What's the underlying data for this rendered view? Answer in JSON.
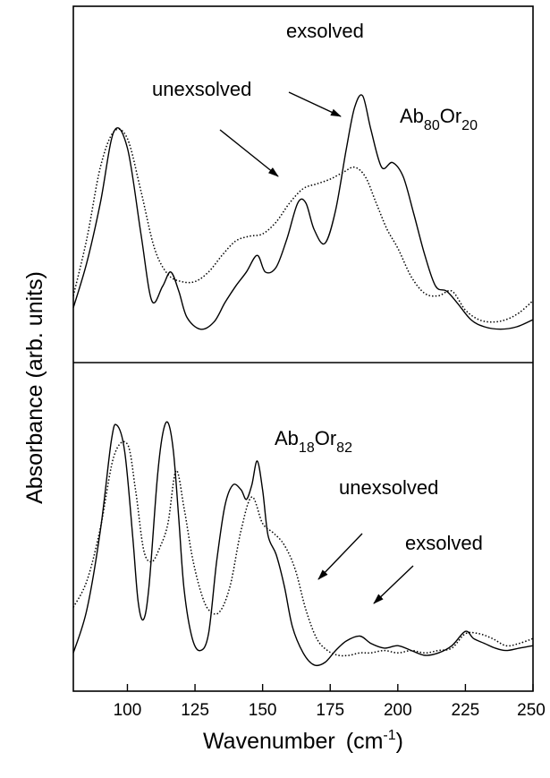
{
  "chart_data": [
    {
      "type": "line",
      "panel": "top",
      "label_main": "Ab",
      "label_sub1": "80",
      "label_mid": "Or",
      "label_sub2": "20",
      "xlim": [
        80,
        250
      ],
      "series": [
        {
          "name": "exsolved",
          "style": "solid",
          "x": [
            80,
            85,
            90,
            95,
            100,
            105,
            109,
            113,
            116,
            119,
            122,
            127,
            132,
            136,
            140,
            144,
            148,
            151,
            155,
            159,
            163,
            166,
            169,
            173,
            177,
            181,
            184,
            187,
            190,
            194,
            198,
            202,
            206,
            210,
            214,
            218,
            222,
            227,
            232,
            238,
            244,
            250
          ],
          "y": [
            0.11,
            0.3,
            0.55,
            0.85,
            0.78,
            0.42,
            0.14,
            0.2,
            0.26,
            0.18,
            0.07,
            0.02,
            0.05,
            0.13,
            0.2,
            0.26,
            0.33,
            0.26,
            0.28,
            0.4,
            0.55,
            0.55,
            0.44,
            0.38,
            0.52,
            0.78,
            0.95,
            1.0,
            0.86,
            0.7,
            0.72,
            0.66,
            0.5,
            0.33,
            0.2,
            0.18,
            0.13,
            0.06,
            0.03,
            0.02,
            0.03,
            0.06
          ]
        },
        {
          "name": "unexsolved",
          "style": "dotted",
          "x": [
            80,
            85,
            90,
            95,
            100,
            105,
            110,
            115,
            120,
            125,
            130,
            135,
            140,
            145,
            150,
            155,
            160,
            165,
            170,
            175,
            180,
            184,
            188,
            192,
            196,
            200,
            205,
            210,
            215,
            220,
            225,
            230,
            235,
            240,
            245,
            250
          ],
          "y": [
            0.16,
            0.4,
            0.7,
            0.85,
            0.82,
            0.6,
            0.36,
            0.25,
            0.22,
            0.22,
            0.26,
            0.33,
            0.39,
            0.41,
            0.42,
            0.47,
            0.55,
            0.61,
            0.63,
            0.65,
            0.68,
            0.7,
            0.66,
            0.55,
            0.44,
            0.36,
            0.24,
            0.17,
            0.16,
            0.18,
            0.1,
            0.06,
            0.05,
            0.06,
            0.09,
            0.14
          ]
        }
      ]
    },
    {
      "type": "line",
      "panel": "bottom",
      "label_main": "Ab",
      "label_sub1": "18",
      "label_mid": "Or",
      "label_sub2": "82",
      "xlim": [
        80,
        250
      ],
      "series": [
        {
          "name": "exsolved",
          "style": "solid",
          "x": [
            80,
            85,
            90,
            94,
            96,
            99,
            102,
            104,
            106,
            108,
            111,
            113,
            115,
            117,
            119,
            121,
            124,
            127,
            130,
            133,
            136,
            139,
            142,
            144,
            146,
            148,
            150,
            152,
            155,
            158,
            161,
            165,
            169,
            173,
            177,
            181,
            186,
            190,
            195,
            200,
            205,
            210,
            215,
            220,
            225,
            228,
            232,
            236,
            240,
            245,
            250
          ],
          "y": [
            0.04,
            0.22,
            0.55,
            0.92,
            0.99,
            0.88,
            0.52,
            0.25,
            0.18,
            0.32,
            0.76,
            0.95,
            1.0,
            0.88,
            0.6,
            0.3,
            0.1,
            0.05,
            0.12,
            0.42,
            0.65,
            0.74,
            0.72,
            0.68,
            0.74,
            0.84,
            0.72,
            0.53,
            0.45,
            0.32,
            0.15,
            0.04,
            -0.01,
            0.0,
            0.05,
            0.09,
            0.11,
            0.08,
            0.06,
            0.07,
            0.05,
            0.03,
            0.04,
            0.07,
            0.13,
            0.1,
            0.08,
            0.06,
            0.05,
            0.06,
            0.07
          ]
        },
        {
          "name": "unexsolved",
          "style": "dotted",
          "x": [
            80,
            85,
            90,
            95,
            100,
            103,
            106,
            109,
            112,
            115,
            118,
            121,
            124,
            127,
            130,
            134,
            138,
            142,
            146,
            150,
            154,
            158,
            162,
            166,
            170,
            174,
            178,
            182,
            186,
            190,
            195,
            200,
            205,
            210,
            215,
            220,
            225,
            230,
            235,
            240,
            245,
            250
          ],
          "y": [
            0.23,
            0.34,
            0.56,
            0.86,
            0.91,
            0.72,
            0.47,
            0.42,
            0.48,
            0.58,
            0.8,
            0.64,
            0.44,
            0.3,
            0.22,
            0.21,
            0.32,
            0.55,
            0.69,
            0.58,
            0.54,
            0.49,
            0.39,
            0.22,
            0.1,
            0.05,
            0.03,
            0.03,
            0.04,
            0.04,
            0.05,
            0.04,
            0.05,
            0.04,
            0.05,
            0.06,
            0.12,
            0.12,
            0.1,
            0.07,
            0.08,
            0.1
          ]
        }
      ]
    }
  ],
  "xaxis": {
    "label": "Wavenumber",
    "unit_prefix": "(cm",
    "unit_exp": "-1",
    "unit_suffix": ")",
    "ticks": [
      100,
      125,
      150,
      175,
      200,
      225,
      250
    ]
  },
  "yaxis": {
    "label": "Absorbance (arb. units)"
  },
  "annotations": {
    "top_exsolved": "exsolved",
    "top_unexsolved": "unexsolved",
    "bottom_unexsolved": "unexsolved",
    "bottom_exsolved": "exsolved"
  }
}
